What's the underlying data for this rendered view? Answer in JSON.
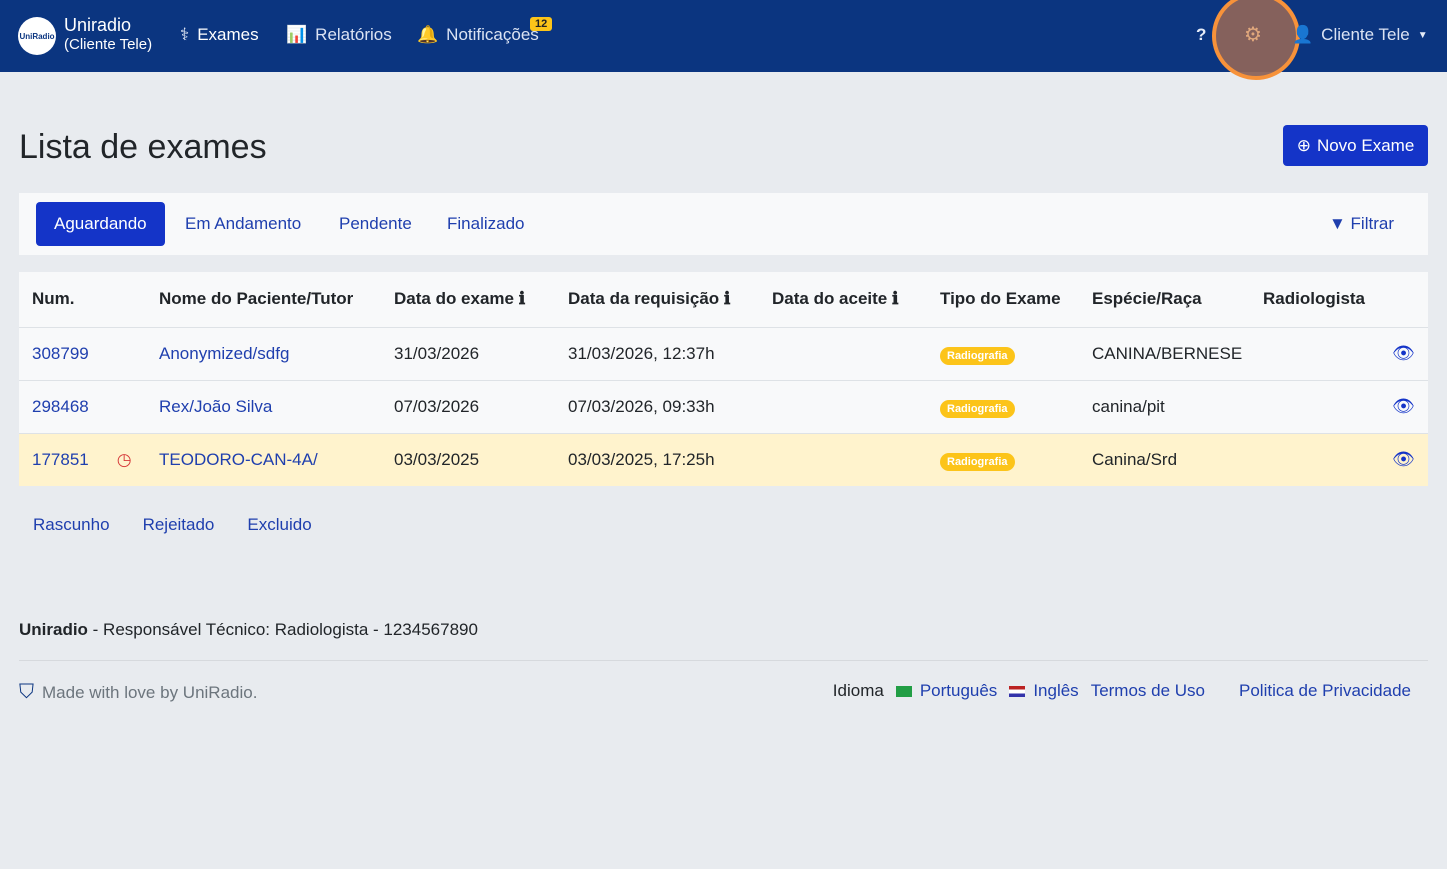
{
  "nav": {
    "logo_text": "UniRadio",
    "brand": "Uniradio",
    "brand_sub": "(Cliente Tele)",
    "exames": "Exames",
    "relatorios": "Relatórios",
    "notificacoes": "Notificações",
    "notif_count": "12",
    "user": "Cliente Tele"
  },
  "page": {
    "title": "Lista de exames",
    "new_exam": "Novo Exame"
  },
  "tabs": [
    {
      "label": "Aguardando",
      "active": true
    },
    {
      "label": "Em Andamento"
    },
    {
      "label": "Pendente"
    },
    {
      "label": "Finalizado"
    }
  ],
  "filter": "Filtrar",
  "table": {
    "headers": [
      "Num.",
      "Nome do Paciente/Tutor",
      "Data do exame",
      "Data da requisição",
      "Data do aceite",
      "Tipo do Exame",
      "Espécie/Raça",
      "Radiologista"
    ],
    "rows": [
      {
        "num": "308799",
        "name": "Anonymized/sdfg",
        "exam_date": "31/03/2026",
        "req_date": "31/03/2026, 12:37h",
        "accept": "",
        "type": "Radiografia",
        "species": "CANINA/BERNESE",
        "radiologist": ""
      },
      {
        "num": "298468",
        "name": "Rex/João Silva",
        "exam_date": "07/03/2026",
        "req_date": "07/03/2026, 09:33h",
        "accept": "",
        "type": "Radiografia",
        "species": "canina/pit",
        "radiologist": ""
      },
      {
        "num": "177851",
        "name": "TEODORO-CAN-4A/",
        "exam_date": "03/03/2025",
        "req_date": "03/03/2025, 17:25h",
        "accept": "",
        "type": "Radiografia",
        "species": "Canina/Srd",
        "radiologist": "",
        "late": true
      }
    ]
  },
  "bottom_links": [
    "Rascunho",
    "Rejeitado",
    "Excluido"
  ],
  "footer": {
    "brand": "Uniradio",
    "resp": " - Responsável Técnico: Radiologista - 1234567890",
    "made": "Made with love by UniRadio.",
    "idioma": "Idioma",
    "pt": "Português",
    "en": "Inglês",
    "terms": "Termos de Uso",
    "privacy": "Politica de Privacidade"
  },
  "colors": {
    "navbar": "#0b3580",
    "primary": "#1434c8",
    "warning_row": "#fff3cd",
    "badge": "#fcc419"
  }
}
